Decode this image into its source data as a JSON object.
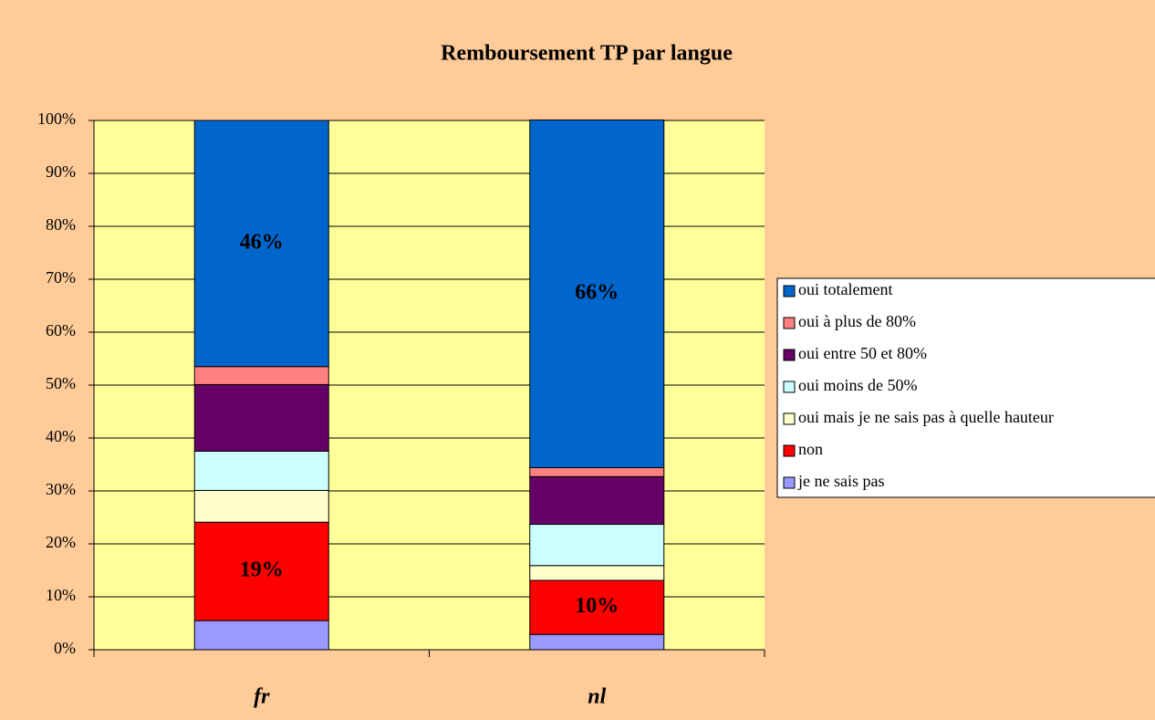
{
  "chart_data": {
    "type": "stacked_bar",
    "title": "Remboursement TP par langue",
    "categories": [
      "fr",
      "nl"
    ],
    "series": [
      {
        "name": "je ne sais pas",
        "color": "#9999FF",
        "values": [
          5.5,
          2.9
        ]
      },
      {
        "name": "non",
        "color": "#FF0000",
        "values": [
          18.6,
          10.2
        ],
        "value_labels": [
          "19%",
          "10%"
        ]
      },
      {
        "name": "oui mais je ne sais pas à quelle hauteur",
        "color": "#FFFFCC",
        "values": [
          6.0,
          2.8
        ]
      },
      {
        "name": "oui moins de 50%",
        "color": "#CCFFFF",
        "values": [
          7.4,
          7.8
        ]
      },
      {
        "name": "oui entre 50 et 80%",
        "color": "#660066",
        "values": [
          12.6,
          9.0
        ]
      },
      {
        "name": "oui à plus de 80%",
        "color": "#FF8080",
        "values": [
          3.4,
          1.7
        ]
      },
      {
        "name": "oui totalement",
        "color": "#0066CC",
        "values": [
          46.5,
          65.7
        ],
        "value_labels": [
          "46%",
          "66%"
        ]
      }
    ],
    "ylim": [
      0,
      100
    ],
    "yticks": [
      {
        "value": 0,
        "label": "0%"
      },
      {
        "value": 10,
        "label": "10%"
      },
      {
        "value": 20,
        "label": "20%"
      },
      {
        "value": 30,
        "label": "30%"
      },
      {
        "value": 40,
        "label": "40%"
      },
      {
        "value": 50,
        "label": "50%"
      },
      {
        "value": 60,
        "label": "60%"
      },
      {
        "value": 70,
        "label": "70%"
      },
      {
        "value": 80,
        "label": "80%"
      },
      {
        "value": 90,
        "label": "90%"
      },
      {
        "value": 100,
        "label": "100%"
      }
    ],
    "grid": true,
    "legend": "right"
  }
}
